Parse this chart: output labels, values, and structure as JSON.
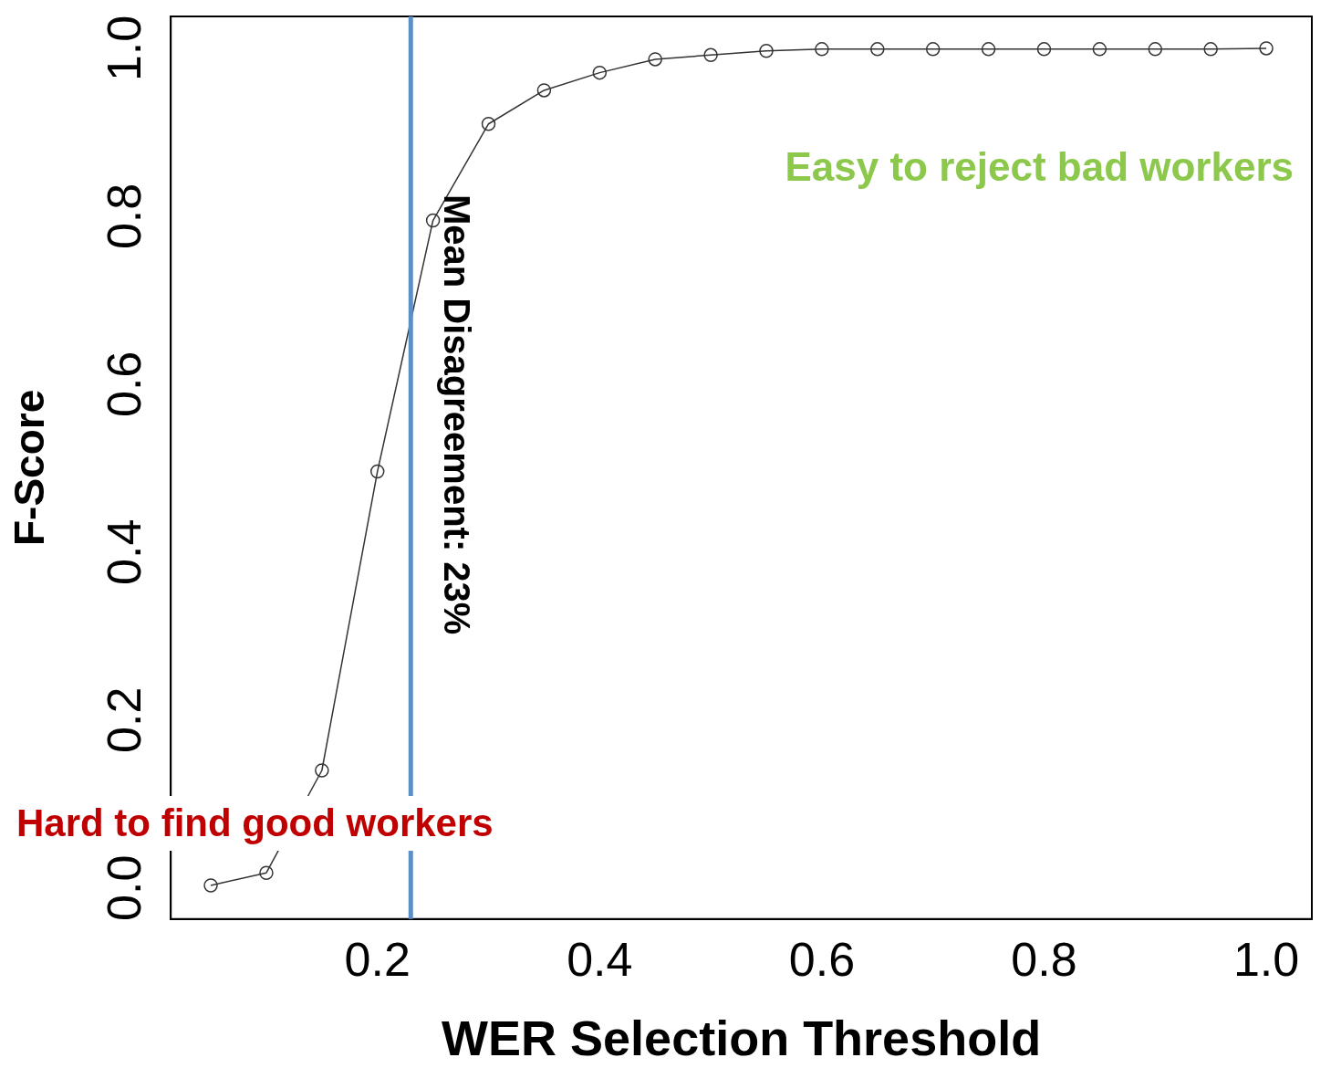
{
  "chart_data": {
    "type": "line",
    "xlabel": "WER Selection Threshold",
    "ylabel": "F-Score",
    "x": [
      0.05,
      0.1,
      0.15,
      0.2,
      0.25,
      0.3,
      0.35,
      0.4,
      0.45,
      0.5,
      0.55,
      0.6,
      0.65,
      0.7,
      0.75,
      0.8,
      0.85,
      0.9,
      0.95,
      1.0
    ],
    "series": [
      {
        "color": "#333333",
        "values": [
          0.003,
          0.018,
          0.14,
          0.496,
          0.795,
          0.91,
          0.95,
          0.971,
          0.987,
          0.992,
          0.997,
          0.999,
          0.999,
          0.999,
          0.999,
          0.999,
          0.999,
          0.999,
          0.999,
          1.0
        ]
      }
    ],
    "xlim": [
      0.014,
      1.041
    ],
    "ylim": [
      -0.037,
      1.038
    ],
    "xticks": [
      {
        "value": 0.2,
        "label": "0.2"
      },
      {
        "value": 0.4,
        "label": "0.4"
      },
      {
        "value": 0.6,
        "label": "0.6"
      },
      {
        "value": 0.8,
        "label": "0.8"
      },
      {
        "value": 1.0,
        "label": "1.0"
      }
    ],
    "yticks": [
      {
        "value": 0,
        "label": "0.0"
      },
      {
        "value": 0.2,
        "label": "0.2"
      },
      {
        "value": 0.4,
        "label": "0.4"
      },
      {
        "value": 0.6,
        "label": "0.6"
      },
      {
        "value": 0.8,
        "label": "0.8"
      },
      {
        "value": 1.0,
        "label": "1.0"
      }
    ],
    "ref_lines": [
      {
        "axis": "x",
        "value": 0.23,
        "label": "Mean Disagreement: 23%",
        "color": "#5b8fc7"
      }
    ],
    "annotations": [
      "Easy to reject bad workers",
      "Hard to find good workers"
    ],
    "marker": "circle",
    "line_style": "solid",
    "grid": false,
    "legend": false
  }
}
